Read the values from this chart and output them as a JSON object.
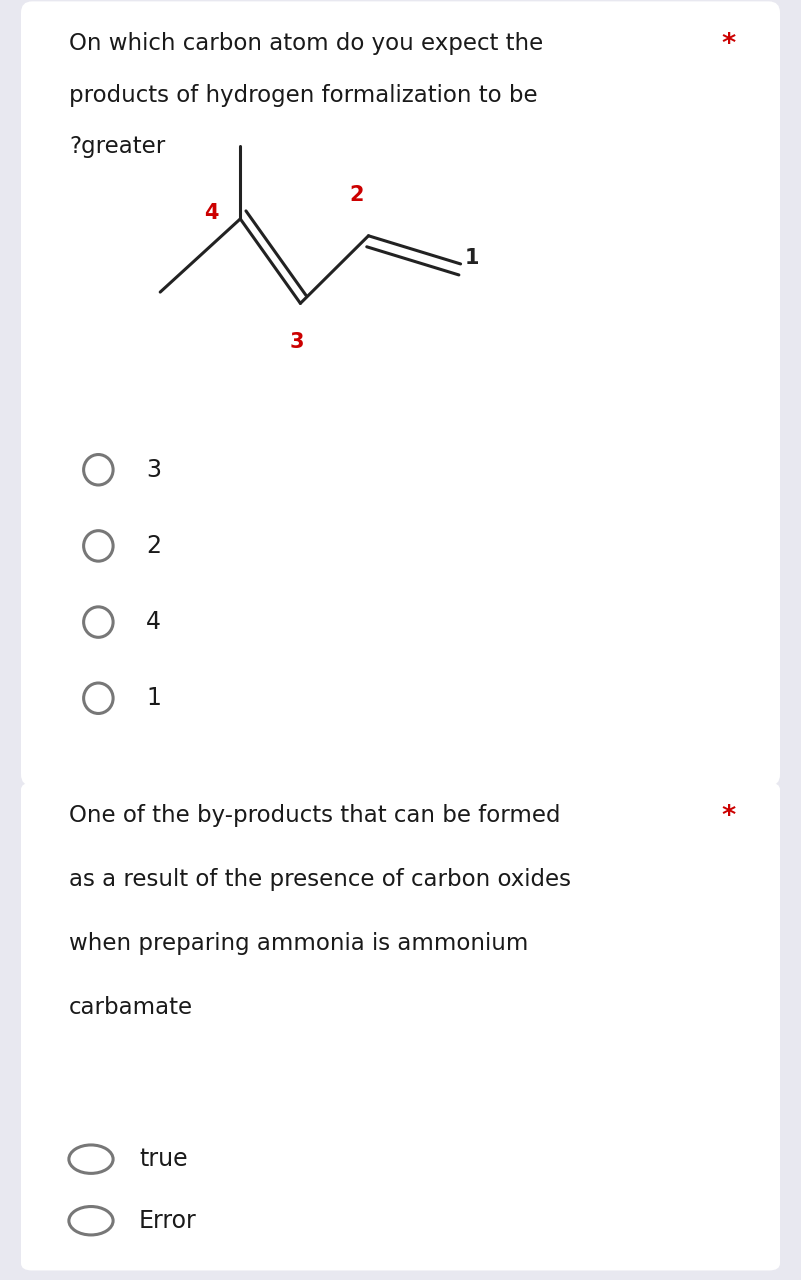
{
  "bg_color": "#e8e8f0",
  "card1_bg": "#ffffff",
  "card2_bg": "#ffffff",
  "card1_title_lines": [
    "On which carbon atom do you expect the",
    "products of hydrogen formalization to be",
    "?greater"
  ],
  "card2_title_lines": [
    "One of the by-products that can be formed",
    "as a result of the presence of carbon oxides",
    "when preparing ammonia is ammonium",
    "carbamate"
  ],
  "star_color": "#cc0000",
  "options1": [
    "3",
    "2",
    "4",
    "1"
  ],
  "options2": [
    "true",
    "Error"
  ],
  "text_color": "#1a1a1a",
  "circle_edge_color": "#777777",
  "molecule_color": "#222222",
  "label_color_red": "#cc0000",
  "label_color_black": "#222222",
  "font_size_title": 16.5,
  "font_size_option": 17,
  "font_size_mol_label": 15
}
